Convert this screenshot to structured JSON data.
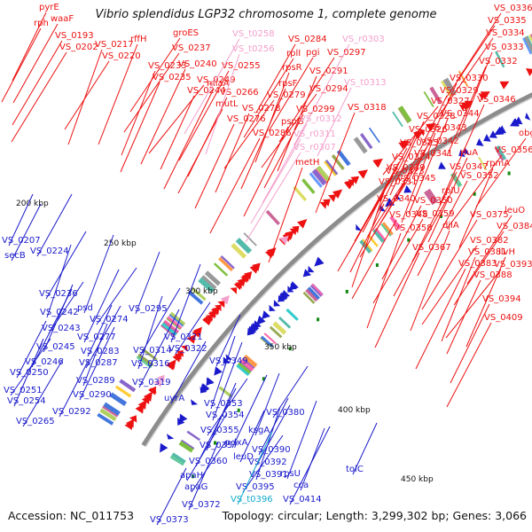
{
  "title": "Vibrio splendidus LGP32 chromosome 1, complete genome",
  "accession": "Accession: NC_011753",
  "summary": "Topology: circular; Length: 3,299,302 bp; Genes: 3,066",
  "colors": {
    "red_strand": "#ee1111",
    "blue_strand": "#1a1acc",
    "trna": "#f3a0cc",
    "rrna": "#11aacc",
    "backbone": "#8c8c8c",
    "tick": "#118811"
  },
  "scale_ticks": [
    "200 kbp",
    "250 kbp",
    "300 kbp",
    "350 kbp",
    "400 kbp",
    "450 kbp"
  ],
  "labels_top": [
    "pyrE",
    "rph",
    "waaF",
    "VS_0193",
    "VS_0202",
    "VS_0217",
    "rffH",
    "VS_0220",
    "groES",
    "VS_0237",
    "VS_0233",
    "VS_0235",
    "VS_0240",
    "miaA",
    "VS_0249",
    "VS_0244",
    "VS_0266",
    "mutL",
    "VS_0255",
    "VS_t0258",
    "VS_t0256",
    "VS_0284",
    "pgi",
    "rplI",
    "VS_0297",
    "rpsR",
    "VS_0291",
    "rpsF",
    "VS_0279",
    "VS_0294",
    "VS_0278",
    "VS_0276",
    "pspG",
    "VS_0286",
    "VS_r0303",
    "VS_t0313",
    "VS_0299",
    "VS_r0312",
    "VS_r0311",
    "VS_r0307",
    "metH",
    "VS_0318",
    "VS_0336",
    "VS_0335",
    "VS_0334",
    "VS_0333",
    "VS_0332",
    "VS_0330",
    "VS_0329",
    "VS_0327",
    "VS_0328",
    "VS_0326",
    "VS_0325",
    "VS_0324",
    "VS_0323",
    "VS_0331",
    "VS_0339",
    "VS_0345",
    "VS_0341",
    "VS_0342",
    "VS_0343",
    "VS_0344",
    "VS_0346",
    "obgE",
    "VS_0356",
    "rpmA",
    "rluA",
    "VS_0347",
    "VS_0352",
    "rplU",
    "VS_0340",
    "VS_0350",
    "VS_0348",
    "VS_0359",
    "VS_0375",
    "VS_0358",
    "djlA",
    "leuO",
    "VS_0384",
    "VS_0382",
    "VS_0381",
    "ilvH",
    "VS_0367",
    "VS_0383",
    "VS_0393",
    "VS_0388",
    "VS_0394",
    "VS_0409"
  ],
  "labels_bottom": [
    "VS_0207",
    "secB",
    "VS_0224",
    "VS_0236",
    "VS_0242",
    "psd",
    "VS_0243",
    "VS_0274",
    "VS_0295",
    "VS_0245",
    "VS_0277",
    "VS_0246",
    "VS_0283",
    "VS_0250",
    "VS_0287",
    "VS_0314",
    "VS_0316",
    "VS_0321",
    "VS_0322",
    "VS_0251",
    "VS_0289",
    "VS_0254",
    "VS_0290",
    "VS_0319",
    "VS_0349",
    "VS_0292",
    "uvrA",
    "VS_0265",
    "VS_0353",
    "VS_0354",
    "VS_0380",
    "VS_0355",
    "ksgA",
    "VS_0357",
    "pdxA",
    "VS_0360",
    "leuD",
    "VS_0390",
    "VS_0392",
    "apaH",
    "VS_0391",
    "rpsU",
    "apaG",
    "VS_0395",
    "cca",
    "VS_0372",
    "VS_t0396",
    "VS_0414",
    "tolC",
    "VS_0373"
  ]
}
